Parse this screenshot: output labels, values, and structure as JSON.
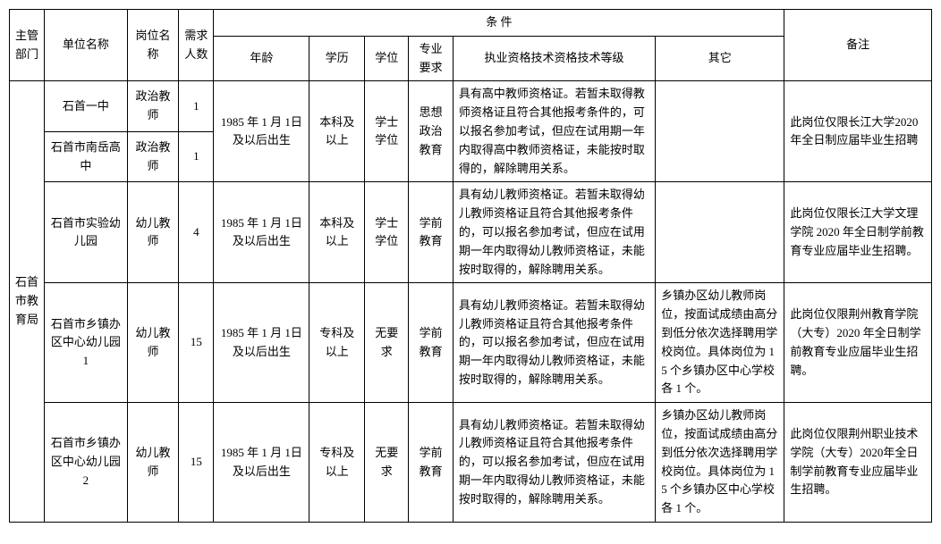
{
  "headers": {
    "dept": "主管部门",
    "unit": "单位名称",
    "post": "岗位名称",
    "count": "需求人数",
    "conditions": "条 件",
    "age": "年龄",
    "edu": "学历",
    "degree": "学位",
    "major": "专业要求",
    "qual": "执业资格技术资格技术等级",
    "other": "其它",
    "note": "备注"
  },
  "dept": "石首市教育局",
  "rows": [
    {
      "unit": "石首一中",
      "post": "政治教师",
      "count": "1",
      "age": "1985 年 1 月 1日及以后出生",
      "edu": "本科及以上",
      "degree": "学士学位",
      "major": "思想政治教育",
      "qual": "具有高中教师资格证。若暂未取得教师资格证且符合其他报考条件的，可以报名参加考试，但应在试用期一年内取得高中教师资格证，未能按时取得的，解除聘用关系。",
      "other": "",
      "note": "此岗位仅限长江大学2020年全日制应届毕业生招聘"
    },
    {
      "unit": "石首市南岳高中",
      "post": "政治教师",
      "count": "1"
    },
    {
      "unit": "石首市实验幼儿园",
      "post": "幼儿教师",
      "count": "4",
      "age": "1985 年 1 月 1日及以后出生",
      "edu": "本科及以上",
      "degree": "学士学位",
      "major": "学前教育",
      "qual": "具有幼儿教师资格证。若暂未取得幼儿教师资格证且符合其他报考条件的，可以报名参加考试，但应在试用期一年内取得幼儿教师资格证，未能按时取得的，解除聘用关系。",
      "other": "",
      "note": "此岗位仅限长江大学文理学院 2020 年全日制学前教育专业应届毕业生招聘。"
    },
    {
      "unit": "石首市乡镇办区中心幼儿园 1",
      "post": "幼儿教师",
      "count": "15",
      "age": "1985 年 1 月 1日及以后出生",
      "edu": "专科及以上",
      "degree": "无要求",
      "major": "学前教育",
      "qual": "具有幼儿教师资格证。若暂未取得幼儿教师资格证且符合其他报考条件的，可以报名参加考试，但应在试用期一年内取得幼儿教师资格证，未能按时取得的，解除聘用关系。",
      "other": "乡镇办区幼儿教师岗位，按面试成绩由高分到低分依次选择聘用学校岗位。具体岗位为 15 个乡镇办区中心学校各 1 个。",
      "note": "此岗位仅限荆州教育学院（大专）2020 年全日制学前教育专业应届毕业生招聘。"
    },
    {
      "unit": "石首市乡镇办区中心幼儿园 2",
      "post": "幼儿教师",
      "count": "15",
      "age": "1985 年 1 月 1日及以后出生",
      "edu": "专科及以上",
      "degree": "无要求",
      "major": "学前教育",
      "qual": "具有幼儿教师资格证。若暂未取得幼儿教师资格证且符合其他报考条件的，可以报名参加考试，但应在试用期一年内取得幼儿教师资格证，未能按时取得的，解除聘用关系。",
      "other": "乡镇办区幼儿教师岗位，按面试成绩由高分到低分依次选择聘用学校岗位。具体岗位为 15 个乡镇办区中心学校各 1 个。",
      "note": "此岗位仅限荆州职业技术学院（大专）2020年全日制学前教育专业应届毕业生招聘。"
    }
  ]
}
